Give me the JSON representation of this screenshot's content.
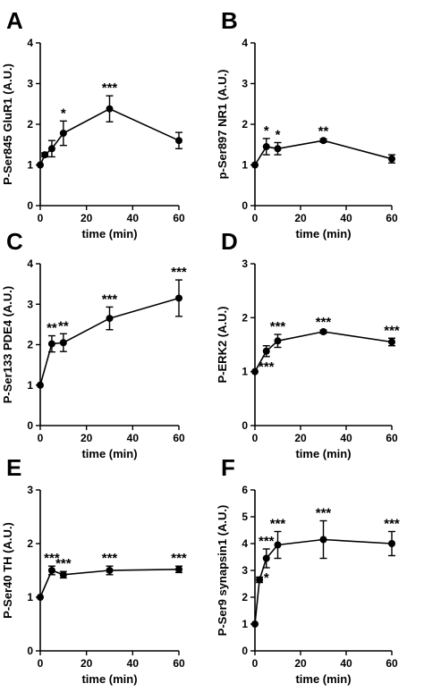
{
  "chart_data": [
    {
      "panel": "A",
      "type": "line",
      "ylabel": "P-Ser845 GluR1 (A.U.)",
      "xlabel": "time (min)",
      "xlim": [
        0,
        60
      ],
      "ylim": [
        0,
        4
      ],
      "xticks": [
        0,
        20,
        40,
        60
      ],
      "yticks": [
        0,
        1,
        2,
        3,
        4
      ],
      "x": [
        0,
        2,
        5,
        10,
        30,
        60
      ],
      "y": [
        1.0,
        1.25,
        1.4,
        1.78,
        2.38,
        1.6
      ],
      "err": [
        0,
        0.05,
        0.2,
        0.3,
        0.32,
        0.2
      ],
      "annotations": [
        {
          "x": 10,
          "text": "*"
        },
        {
          "x": 30,
          "text": "***"
        }
      ]
    },
    {
      "panel": "B",
      "type": "line",
      "ylabel": "p-Ser897 NR1 (A.U.)",
      "xlabel": "time (min)",
      "xlim": [
        0,
        60
      ],
      "ylim": [
        0,
        4
      ],
      "xticks": [
        0,
        20,
        40,
        60
      ],
      "yticks": [
        0,
        1,
        2,
        3,
        4
      ],
      "x": [
        0,
        5,
        10,
        30,
        60
      ],
      "y": [
        1.0,
        1.45,
        1.4,
        1.6,
        1.15
      ],
      "err": [
        0,
        0.2,
        0.15,
        0.04,
        0.1
      ],
      "annotations": [
        {
          "x": 5,
          "text": "*"
        },
        {
          "x": 10,
          "text": "*"
        },
        {
          "x": 30,
          "text": "**"
        }
      ]
    },
    {
      "panel": "C",
      "type": "line",
      "ylabel": "P-Ser133 PDE4 (A.U.)",
      "xlabel": "time (min)",
      "xlim": [
        0,
        60
      ],
      "ylim": [
        0,
        4
      ],
      "xticks": [
        0,
        20,
        40,
        60
      ],
      "yticks": [
        0,
        1,
        2,
        3,
        4
      ],
      "x": [
        0,
        5,
        10,
        30,
        60
      ],
      "y": [
        1.0,
        2.02,
        2.05,
        2.65,
        3.15
      ],
      "err": [
        0,
        0.2,
        0.22,
        0.28,
        0.45
      ],
      "annotations": [
        {
          "x": 5,
          "text": "**"
        },
        {
          "x": 10,
          "text": "**"
        },
        {
          "x": 30,
          "text": "***"
        },
        {
          "x": 60,
          "text": "***"
        }
      ]
    },
    {
      "panel": "D",
      "type": "line",
      "ylabel": "P-ERK2 (A.U.)",
      "xlabel": "time (min)",
      "xlim": [
        0,
        60
      ],
      "ylim": [
        0,
        3
      ],
      "xticks": [
        0,
        20,
        40,
        60
      ],
      "yticks": [
        0,
        1,
        2,
        3
      ],
      "x": [
        0,
        5,
        10,
        30,
        60
      ],
      "y": [
        1.0,
        1.38,
        1.57,
        1.74,
        1.55
      ],
      "err": [
        0,
        0.1,
        0.12,
        0.03,
        0.07
      ],
      "annotations": [
        {
          "x": 5,
          "text": "***",
          "below": true
        },
        {
          "x": 10,
          "text": "***"
        },
        {
          "x": 30,
          "text": "***"
        },
        {
          "x": 60,
          "text": "***"
        }
      ]
    },
    {
      "panel": "E",
      "type": "line",
      "ylabel": "P-Ser40 TH (A.U.)",
      "xlabel": "time (min)",
      "xlim": [
        0,
        60
      ],
      "ylim": [
        0,
        3
      ],
      "xticks": [
        0,
        20,
        40,
        60
      ],
      "yticks": [
        0,
        1,
        2,
        3
      ],
      "x": [
        0,
        5,
        10,
        30,
        60
      ],
      "y": [
        1.0,
        1.5,
        1.42,
        1.5,
        1.52
      ],
      "err": [
        0,
        0.08,
        0.06,
        0.08,
        0.06
      ],
      "annotations": [
        {
          "x": 5,
          "text": "***"
        },
        {
          "x": 10,
          "text": "***"
        },
        {
          "x": 30,
          "text": "***"
        },
        {
          "x": 60,
          "text": "***"
        }
      ]
    },
    {
      "panel": "F",
      "type": "line",
      "ylabel": "P-Ser9 synapsin1 (A.U.)",
      "xlabel": "time (min)",
      "xlim": [
        0,
        60
      ],
      "ylim": [
        0,
        6
      ],
      "xticks": [
        0,
        20,
        40,
        60
      ],
      "yticks": [
        0,
        1,
        2,
        3,
        4,
        5,
        6
      ],
      "x": [
        0,
        2,
        5,
        10,
        30,
        60
      ],
      "y": [
        1.0,
        2.65,
        3.45,
        3.95,
        4.15,
        4.0
      ],
      "err": [
        0,
        0.1,
        0.35,
        0.5,
        0.7,
        0.45
      ],
      "annotations": [
        {
          "x": 5,
          "text": "*",
          "below": true
        },
        {
          "x": 5,
          "text": "***"
        },
        {
          "x": 10,
          "text": "***"
        },
        {
          "x": 30,
          "text": "***"
        },
        {
          "x": 60,
          "text": "***"
        }
      ]
    }
  ]
}
